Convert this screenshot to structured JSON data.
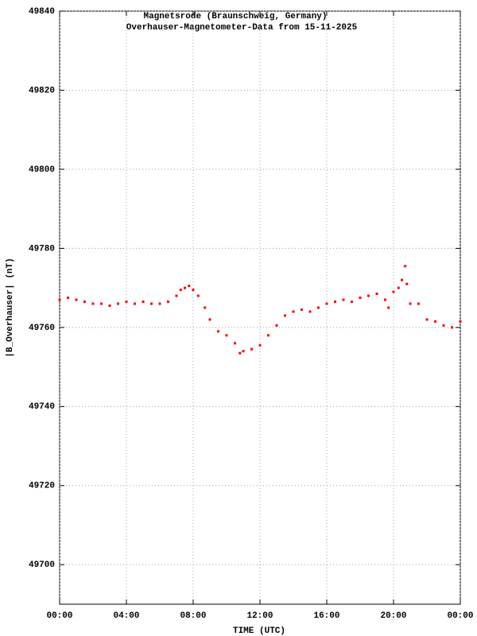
{
  "chart_data": {
    "type": "scatter",
    "title": "Magnetsrode (Braunschweig, Germany)",
    "subtitle": "Overhauser-Magnetometer-Data from 15-11-2025",
    "x_label": "TIME (UTC)",
    "y_label": "|B_Overhauser| (nT)",
    "x": [
      0,
      0.5,
      1,
      1.5,
      2,
      2.5,
      3,
      3.5,
      4,
      4.5,
      5,
      5.5,
      6,
      6.5,
      7,
      7.25,
      7.5,
      7.75,
      8,
      8.3,
      8.7,
      9,
      9.5,
      10,
      10.5,
      10.8,
      11,
      11.5,
      12,
      12.5,
      13,
      13.5,
      14,
      14.5,
      15,
      15.5,
      16,
      16.5,
      17,
      17.5,
      18,
      18.5,
      19,
      19.5,
      19.7,
      20,
      20.3,
      20.5,
      20.7,
      20.8,
      21,
      21.5,
      22,
      22.5,
      23,
      23.5,
      24
    ],
    "series": [
      {
        "name": "|B_Overhauser|",
        "color": "#ff0000",
        "values": [
          49767,
          49767.5,
          49767,
          49766.5,
          49766,
          49766,
          49765.5,
          49766,
          49766.5,
          49766,
          49766.5,
          49766,
          49766,
          49766.5,
          49768,
          49769.5,
          49770,
          49770.5,
          49769.5,
          49768,
          49765,
          49762,
          49759,
          49758,
          49756,
          49753.5,
          49754,
          49754.5,
          49755.5,
          49758,
          49760.5,
          49763,
          49764,
          49764.5,
          49764,
          49765,
          49766,
          49766.5,
          49767,
          49766.5,
          49767.5,
          49768,
          49768.5,
          49767,
          49765,
          49769,
          49770,
          49772,
          49775.5,
          49771,
          49766,
          49766,
          49762,
          49761.5,
          49760.5,
          49760,
          49761.5
        ]
      }
    ],
    "xlim": [
      0,
      24
    ],
    "xticks": [
      {
        "value": 0,
        "label": "00:00"
      },
      {
        "value": 4,
        "label": "04:00"
      },
      {
        "value": 8,
        "label": "08:00"
      },
      {
        "value": 12,
        "label": "12:00"
      },
      {
        "value": 16,
        "label": "16:00"
      },
      {
        "value": 20,
        "label": "20:00"
      },
      {
        "value": 24,
        "label": "00:00"
      }
    ],
    "ylim": [
      49690,
      49840
    ],
    "yticks": [
      49700,
      49720,
      49740,
      49760,
      49780,
      49800,
      49820,
      49840
    ],
    "grid": true
  }
}
